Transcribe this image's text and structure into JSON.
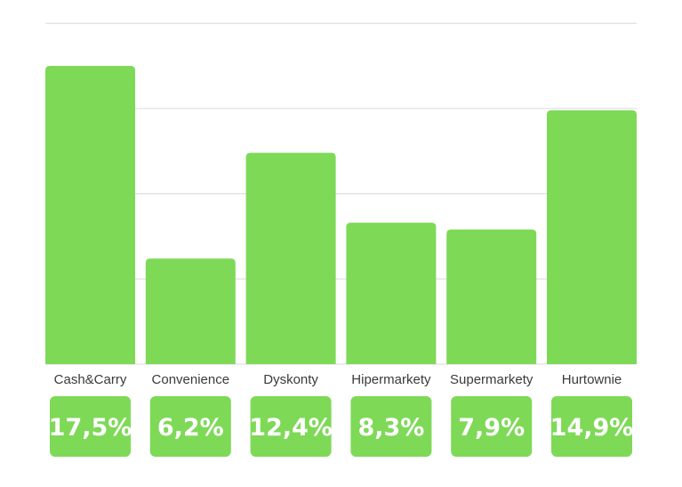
{
  "chart_data": {
    "type": "bar",
    "categories": [
      "Cash&Carry",
      "Convenience",
      "Dyskonty",
      "Hipermarkety",
      "Supermarkety",
      "Hurtownie"
    ],
    "values": [
      17.5,
      6.2,
      12.4,
      8.3,
      7.9,
      14.9
    ],
    "value_labels": [
      "17,5%",
      "6,2%",
      "12,4%",
      "8,3%",
      "7,9%",
      "14,9%"
    ],
    "title": "",
    "xlabel": "",
    "ylabel": "",
    "ylim": [
      0,
      20
    ],
    "grid": true,
    "bar_color": "#7ED957",
    "label_box_color": "#7ED957",
    "grid_color": "#d9d9d9"
  }
}
